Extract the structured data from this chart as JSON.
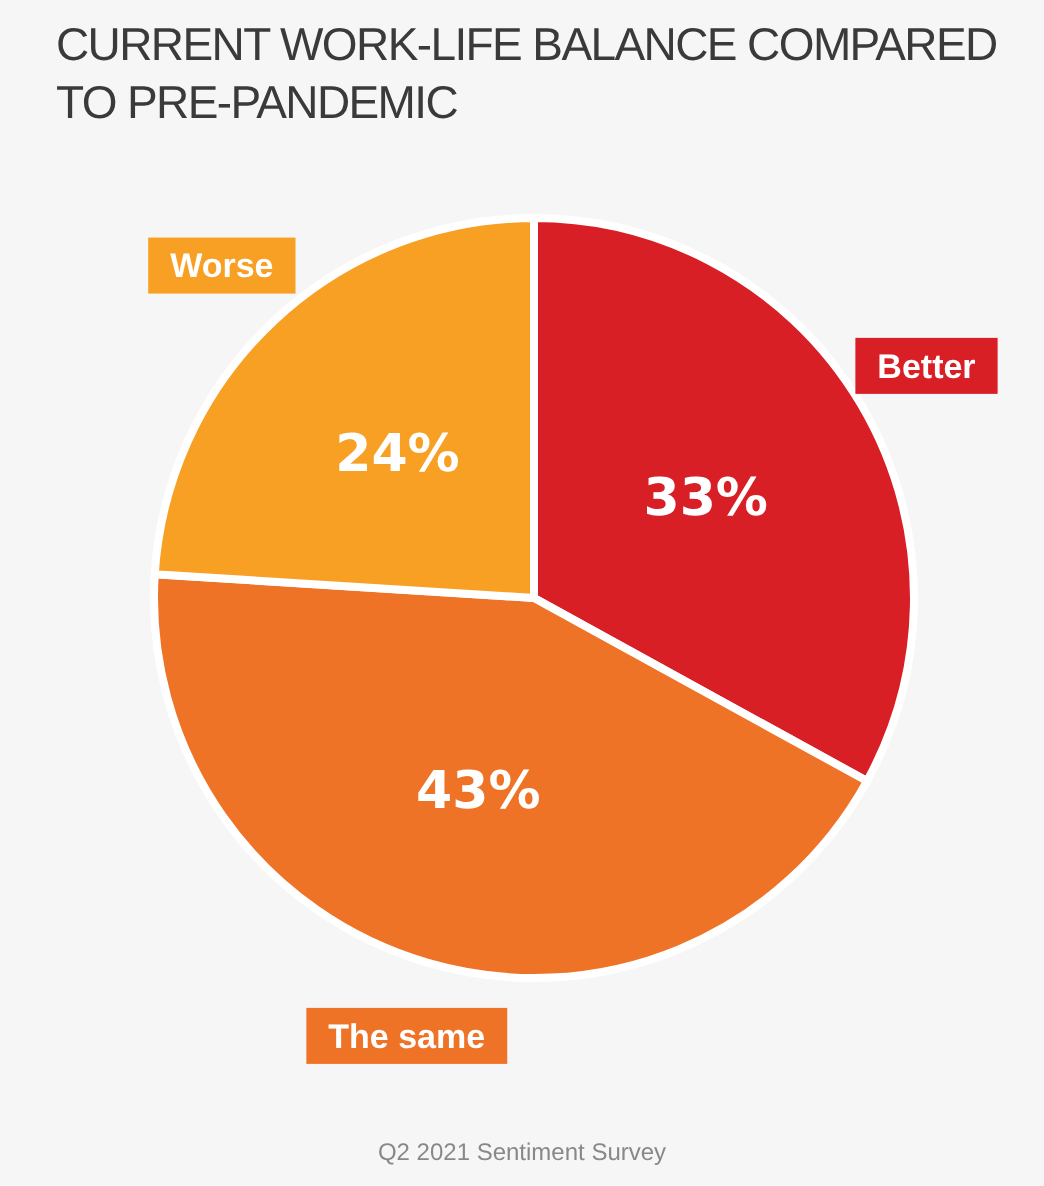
{
  "chart_data": {
    "type": "pie",
    "title": "CURRENT WORK-LIFE BALANCE COMPARED TO PRE-PANDEMIC",
    "categories": [
      "Better",
      "The same",
      "Worse"
    ],
    "values": [
      33,
      43,
      24
    ],
    "colors": [
      "#d91f26",
      "#ee7326",
      "#f7a024"
    ],
    "value_labels": [
      "33%",
      "43%",
      "24%"
    ],
    "annotations": [
      "Q2 2021 Sentiment Survey"
    ]
  }
}
